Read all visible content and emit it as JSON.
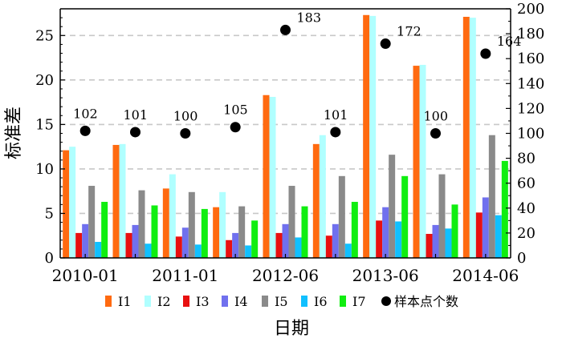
{
  "chart_data": {
    "type": "bar",
    "xlabel": "日期",
    "ylabel": "标准差",
    "ylim": [
      0,
      28
    ],
    "y_ticks": [
      0,
      5,
      10,
      15,
      20,
      25
    ],
    "y2lim": [
      0,
      200
    ],
    "y2_ticks": [
      0,
      20,
      40,
      60,
      80,
      100,
      120,
      140,
      160,
      180,
      200
    ],
    "grid": "horizontal dashed",
    "legend_position": "bottom",
    "x_tick_labels": [
      "2010-01",
      "2011-01",
      "2012-06",
      "2013-06",
      "2014-06"
    ],
    "series": [
      {
        "name": "I1",
        "color": "#ff6a10",
        "values": [
          12.1,
          12.7,
          7.8,
          5.7,
          18.3,
          12.8,
          27.3,
          21.6,
          27.1
        ]
      },
      {
        "name": "I2",
        "color": "#b0ffff",
        "values": [
          12.5,
          12.8,
          9.4,
          7.4,
          18.1,
          13.8,
          27.2,
          21.7,
          27.0
        ]
      },
      {
        "name": "I3",
        "color": "#e81010",
        "values": [
          2.8,
          2.8,
          2.4,
          2.0,
          2.8,
          2.5,
          4.2,
          2.7,
          5.1
        ]
      },
      {
        "name": "I4",
        "color": "#7070ee",
        "values": [
          3.8,
          3.7,
          3.4,
          2.8,
          3.8,
          3.8,
          5.7,
          3.7,
          6.8
        ]
      },
      {
        "name": "I5",
        "color": "#8a8a8a",
        "values": [
          8.1,
          7.6,
          7.4,
          5.8,
          8.1,
          9.2,
          11.6,
          9.4,
          13.8
        ]
      },
      {
        "name": "I6",
        "color": "#10c0ff",
        "values": [
          1.8,
          1.6,
          1.5,
          1.4,
          2.3,
          1.6,
          4.1,
          3.3,
          4.8
        ]
      },
      {
        "name": "I7",
        "color": "#10ee10",
        "values": [
          6.3,
          5.9,
          5.5,
          4.2,
          5.8,
          6.3,
          9.2,
          6.0,
          10.9
        ]
      }
    ],
    "sample_counts": {
      "name": "样本点个数",
      "values": [
        102,
        101,
        100,
        105,
        183,
        101,
        172,
        100,
        164
      ],
      "labels": [
        "102",
        "101",
        "100",
        "105",
        "183",
        "101",
        "172",
        "100",
        "164"
      ]
    }
  }
}
